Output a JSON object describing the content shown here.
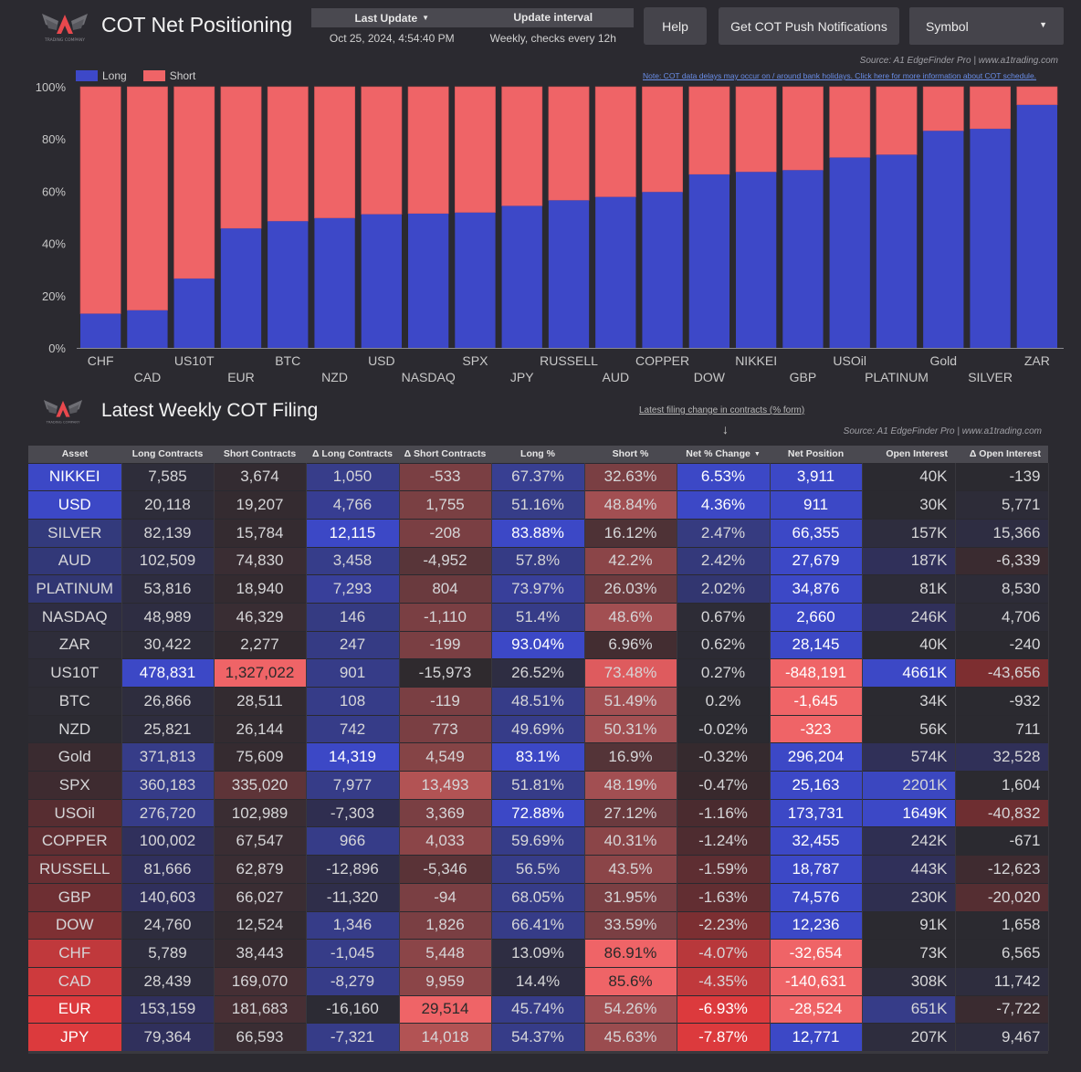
{
  "header": {
    "title": "COT Net Positioning",
    "logo_caption": "TRADING COMPANY",
    "info": {
      "last_update_label": "Last Update",
      "update_interval_label": "Update interval",
      "last_update_value": "Oct 25, 2024, 4:54:40 PM",
      "update_interval_value": "Weekly, checks every 12h"
    },
    "help_label": "Help",
    "push_label": "Get COT Push Notifications",
    "symbol_label": "Symbol"
  },
  "chart_section": {
    "source": "Source: A1 EdgeFinder Pro | www.a1trading.com",
    "note": "Note: COT data delays may occur on / around bank holidays. Click here for more information about COT schedule."
  },
  "colors": {
    "long": "#3d48c8",
    "short": "#ef6467",
    "background": "#2b2a30",
    "header_bg": "#4a4950"
  },
  "chart_data": {
    "type": "bar",
    "stacked": true,
    "title": "COT Net Positioning",
    "xlabel": "",
    "ylabel": "",
    "ylim": [
      0,
      100
    ],
    "yticks": [
      "0%",
      "20%",
      "40%",
      "60%",
      "80%",
      "100%"
    ],
    "ytick_values": [
      0,
      20,
      40,
      60,
      80,
      100
    ],
    "legend": [
      "Long",
      "Short"
    ],
    "legend_position": "top-left",
    "grid": false,
    "categories": [
      "CHF",
      "CAD",
      "US10T",
      "EUR",
      "BTC",
      "NZD",
      "USD",
      "NASDAQ",
      "SPX",
      "JPY",
      "RUSSELL",
      "AUD",
      "COPPER",
      "DOW",
      "NIKKEI",
      "GBP",
      "USOil",
      "PLATINUM",
      "Gold",
      "SILVER",
      "ZAR"
    ],
    "series": [
      {
        "name": "Long",
        "values": [
          13.09,
          14.4,
          26.52,
          45.74,
          48.51,
          49.69,
          51.16,
          51.4,
          51.81,
          54.37,
          56.5,
          57.8,
          59.69,
          66.41,
          67.37,
          68.05,
          72.88,
          73.97,
          83.1,
          83.88,
          93.04
        ]
      },
      {
        "name": "Short",
        "values": [
          86.91,
          85.6,
          73.48,
          54.26,
          51.49,
          50.31,
          48.84,
          48.6,
          48.19,
          45.63,
          43.5,
          42.2,
          40.31,
          33.59,
          32.63,
          31.95,
          27.12,
          26.03,
          16.9,
          16.12,
          6.96
        ]
      }
    ]
  },
  "table_section": {
    "title": "Latest Weekly COT Filing",
    "filing_note": "Latest filing change in contracts (% form)",
    "arrow": "↓",
    "source": "Source: A1 EdgeFinder Pro | www.a1trading.com",
    "columns": [
      "Asset",
      "Long Contracts",
      "Short Contracts",
      "Δ Long Contracts",
      "Δ Short Contracts",
      "Long %",
      "Short %",
      "Net % Change",
      "Net Position",
      "Open Interest",
      "Δ Open Interest"
    ],
    "sorted_column": "Net % Change",
    "rows": [
      [
        "NIKKEI",
        "7,585",
        "3,674",
        "1,050",
        "-533",
        "67.37%",
        "32.63%",
        "6.53%",
        "3,911",
        "40K",
        "-139"
      ],
      [
        "USD",
        "20,118",
        "19,207",
        "4,766",
        "1,755",
        "51.16%",
        "48.84%",
        "4.36%",
        "911",
        "30K",
        "5,771"
      ],
      [
        "SILVER",
        "82,139",
        "15,784",
        "12,115",
        "-208",
        "83.88%",
        "16.12%",
        "2.47%",
        "66,355",
        "157K",
        "15,366"
      ],
      [
        "AUD",
        "102,509",
        "74,830",
        "3,458",
        "-4,952",
        "57.8%",
        "42.2%",
        "2.42%",
        "27,679",
        "187K",
        "-6,339"
      ],
      [
        "PLATINUM",
        "53,816",
        "18,940",
        "7,293",
        "804",
        "73.97%",
        "26.03%",
        "2.02%",
        "34,876",
        "81K",
        "8,530"
      ],
      [
        "NASDAQ",
        "48,989",
        "46,329",
        "146",
        "-1,110",
        "51.4%",
        "48.6%",
        "0.67%",
        "2,660",
        "246K",
        "4,706"
      ],
      [
        "ZAR",
        "30,422",
        "2,277",
        "247",
        "-199",
        "93.04%",
        "6.96%",
        "0.62%",
        "28,145",
        "40K",
        "-240"
      ],
      [
        "US10T",
        "478,831",
        "1,327,022",
        "901",
        "-15,973",
        "26.52%",
        "73.48%",
        "0.27%",
        "-848,191",
        "4661K",
        "-43,656"
      ],
      [
        "BTC",
        "26,866",
        "28,511",
        "108",
        "-119",
        "48.51%",
        "51.49%",
        "0.2%",
        "-1,645",
        "34K",
        "-932"
      ],
      [
        "NZD",
        "25,821",
        "26,144",
        "742",
        "773",
        "49.69%",
        "50.31%",
        "-0.02%",
        "-323",
        "56K",
        "711"
      ],
      [
        "Gold",
        "371,813",
        "75,609",
        "14,319",
        "4,549",
        "83.1%",
        "16.9%",
        "-0.32%",
        "296,204",
        "574K",
        "32,528"
      ],
      [
        "SPX",
        "360,183",
        "335,020",
        "7,977",
        "13,493",
        "51.81%",
        "48.19%",
        "-0.47%",
        "25,163",
        "2201K",
        "1,604"
      ],
      [
        "USOil",
        "276,720",
        "102,989",
        "-7,303",
        "3,369",
        "72.88%",
        "27.12%",
        "-1.16%",
        "173,731",
        "1649K",
        "-40,832"
      ],
      [
        "COPPER",
        "100,002",
        "67,547",
        "966",
        "4,033",
        "59.69%",
        "40.31%",
        "-1.24%",
        "32,455",
        "242K",
        "-671"
      ],
      [
        "RUSSELL",
        "81,666",
        "62,879",
        "-12,896",
        "-5,346",
        "56.5%",
        "43.5%",
        "-1.59%",
        "18,787",
        "443K",
        "-12,623"
      ],
      [
        "GBP",
        "140,603",
        "66,027",
        "-11,320",
        "-94",
        "68.05%",
        "31.95%",
        "-1.63%",
        "74,576",
        "230K",
        "-20,020"
      ],
      [
        "DOW",
        "24,760",
        "12,524",
        "1,346",
        "1,826",
        "66.41%",
        "33.59%",
        "-2.23%",
        "12,236",
        "91K",
        "1,658"
      ],
      [
        "CHF",
        "5,789",
        "38,443",
        "-1,045",
        "5,448",
        "13.09%",
        "86.91%",
        "-4.07%",
        "-32,654",
        "73K",
        "6,565"
      ],
      [
        "CAD",
        "28,439",
        "169,070",
        "-8,279",
        "9,959",
        "14.4%",
        "85.6%",
        "-4.35%",
        "-140,631",
        "308K",
        "11,742"
      ],
      [
        "EUR",
        "153,159",
        "181,683",
        "-16,160",
        "29,514",
        "45.74%",
        "54.26%",
        "-6.93%",
        "-28,524",
        "651K",
        "-7,722"
      ],
      [
        "JPY",
        "79,364",
        "66,593",
        "-7,321",
        "14,018",
        "54.37%",
        "45.63%",
        "-7.87%",
        "12,771",
        "207K",
        "9,467"
      ]
    ],
    "cell_colors": [
      [
        "#3c48c6",
        "#2e2d3a",
        "#332b31",
        "#373d8a",
        "#7a3f43",
        "#383f92",
        "#7a3f43",
        "#3c48c6",
        "#3c48c6",
        "#2b2a30",
        "#2b2a30"
      ],
      [
        "#3c48c6",
        "#2e2d3a",
        "#342b30",
        "#373d92",
        "#7a4043",
        "#363d88",
        "#a24f52",
        "#3c48c6",
        "#3c48c6",
        "#2b2a30",
        "#2d2c38"
      ],
      [
        "#333a7c",
        "#2f2e45",
        "#342b30",
        "#3c48c6",
        "#7a3f43",
        "#3c48c6",
        "#4e3236",
        "#363b80",
        "#3c48c6",
        "#2e2d3e",
        "#2e2d42"
      ],
      [
        "#323878",
        "#30304c",
        "#3a2d33",
        "#363d8a",
        "#583539",
        "#353b85",
        "#8b4548",
        "#34397b",
        "#3c48c6",
        "#30305a",
        "#3a2b30"
      ],
      [
        "#313672",
        "#2e2d40",
        "#342b30",
        "#383f9a",
        "#6a3a3e",
        "#383f9a",
        "#6c3b3f",
        "#323670",
        "#3c48c6",
        "#2d2c38",
        "#2d2c38"
      ],
      [
        "#2e2d42",
        "#2e2d42",
        "#392d33",
        "#353b82",
        "#7a3f43",
        "#363c88",
        "#a24f52",
        "#2d2c36",
        "#3c48c6",
        "#30305a",
        "#2d2c36"
      ],
      [
        "#2e2d3a",
        "#2e2d3a",
        "#322a2f",
        "#353b84",
        "#7a3f43",
        "#3c48c6",
        "#432d31",
        "#2c2b34",
        "#3c48c6",
        "#2b2a30",
        "#2b2a30"
      ],
      [
        "#2d2c36",
        "#3c48c6",
        "#ef6467",
        "#363c88",
        "#2f2a2e",
        "#2e2d42",
        "#de5b5e",
        "#2c2b34",
        "#ef6467",
        "#3c48c6",
        "#7d2e30"
      ],
      [
        "#2d2c34",
        "#2e2d3e",
        "#332b30",
        "#363c88",
        "#7a3f43",
        "#363c88",
        "#a24f52",
        "#2b2a30",
        "#ef6467",
        "#2b2a30",
        "#2b2a30"
      ],
      [
        "#2c2b32",
        "#2e2d3e",
        "#332b30",
        "#363c88",
        "#7a3f43",
        "#363c88",
        "#a24f52",
        "#2b2a30",
        "#ef6467",
        "#2b2a30",
        "#2b2a30"
      ],
      [
        "#3a2b30",
        "#363c88",
        "#352b30",
        "#3c48c6",
        "#854446",
        "#3c48c6",
        "#543438",
        "#352a2e",
        "#3c48c6",
        "#303058",
        "#303058"
      ],
      [
        "#3e2b30",
        "#363c88",
        "#5e3438",
        "#363c88",
        "#b25354",
        "#363c88",
        "#a24f52",
        "#38292d",
        "#3c48c6",
        "#3b47c0",
        "#2b2a30"
      ],
      [
        "#572d31",
        "#363c88",
        "#3a2d33",
        "#2f2e50",
        "#7a3f43",
        "#3c48c6",
        "#6a3a3e",
        "#4a2b2f",
        "#3c48c6",
        "#3c48c6",
        "#6e2e31"
      ],
      [
        "#602e32",
        "#30305c",
        "#3a2d33",
        "#363c88",
        "#8b4548",
        "#363c88",
        "#8b4548",
        "#4e2c30",
        "#3c48c6",
        "#2f2f52",
        "#2b2a30"
      ],
      [
        "#682f33",
        "#30305c",
        "#3a2d33",
        "#2f2e4a",
        "#5a3337",
        "#363c88",
        "#8b4548",
        "#5e2e32",
        "#3c48c6",
        "#30305a",
        "#3f2b30"
      ],
      [
        "#6e2f33",
        "#30305c",
        "#3a2d33",
        "#2f2e4a",
        "#7a3f43",
        "#363c88",
        "#7a3f43",
        "#622e32",
        "#3c48c6",
        "#2f2f50",
        "#552e32"
      ],
      [
        "#7e3033",
        "#2e2d3e",
        "#332b30",
        "#363c88",
        "#7a3f43",
        "#363c88",
        "#7a3f43",
        "#7c2f32",
        "#3c48c6",
        "#2b2a30",
        "#2b2a30"
      ],
      [
        "#c0393c",
        "#2e2d3e",
        "#362b30",
        "#363c88",
        "#8b4548",
        "#2e2d42",
        "#ef6467",
        "#b8383b",
        "#ef6467",
        "#2b2a30",
        "#2b2a30"
      ],
      [
        "#cd3a3d",
        "#2e2d3e",
        "#452f34",
        "#363c88",
        "#8b4548",
        "#2e2d42",
        "#ef6467",
        "#c0393c",
        "#ef6467",
        "#2e2d3e",
        "#2e2d3e"
      ],
      [
        "#dc3a3d",
        "#30305c",
        "#472f34",
        "#2c2b34",
        "#ef6467",
        "#363c88",
        "#a24f52",
        "#dc3a3d",
        "#ef6467",
        "#363c88",
        "#3a2b30"
      ],
      [
        "#dc3a3d",
        "#30305c",
        "#3a2d33",
        "#363c88",
        "#b25354",
        "#363c88",
        "#9a4c4f",
        "#dc3a3d",
        "#3c48c6",
        "#2e2d3e",
        "#2e2d3e"
      ]
    ]
  }
}
